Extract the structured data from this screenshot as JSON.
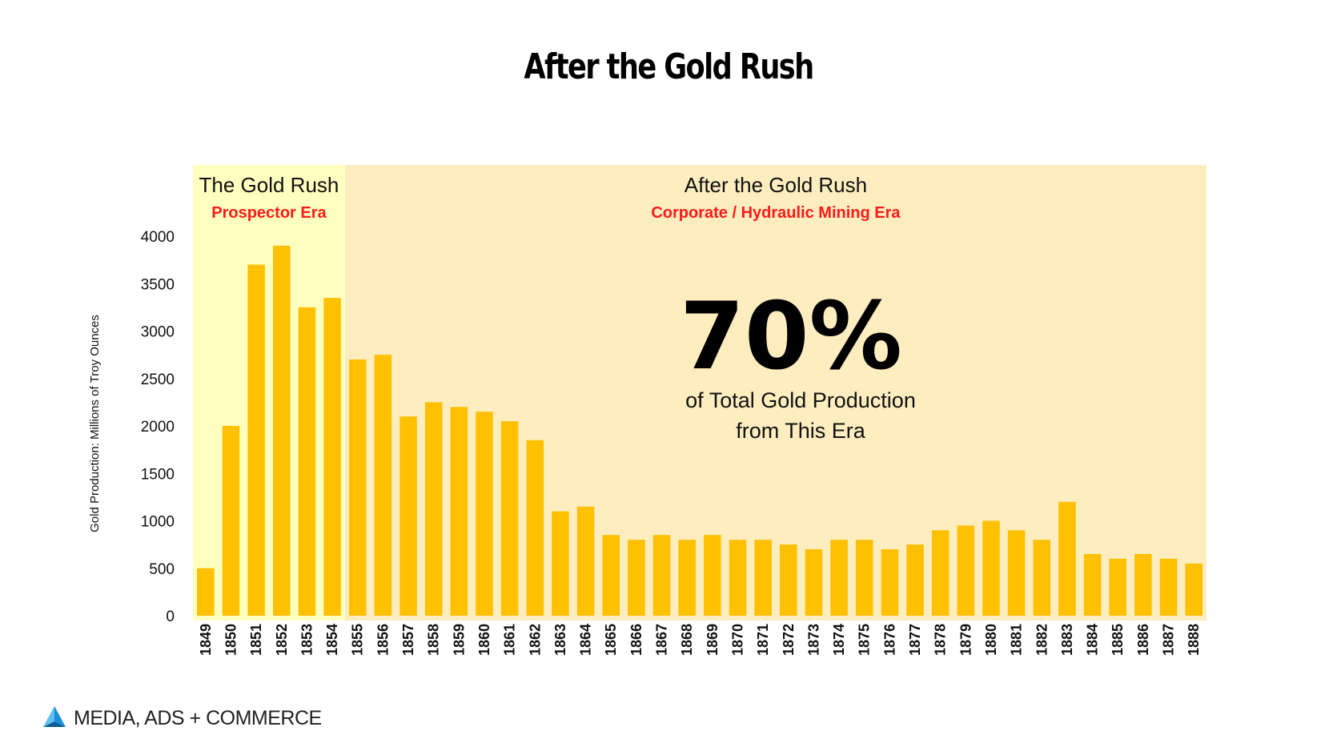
{
  "title": "After the Gold Rush",
  "footer": {
    "brand": "MEDIA, ADS + COMMERCE",
    "logo_icon": "triangle-logo-icon"
  },
  "chart_data": {
    "type": "bar",
    "ylabel": "Gold Production: Millions of Troy Ounces",
    "xlabel": "",
    "ylim": [
      0,
      4000
    ],
    "yticks": [
      0,
      500,
      1000,
      1500,
      2000,
      2500,
      3000,
      3500,
      4000
    ],
    "categories": [
      "1849",
      "1850",
      "1851",
      "1852",
      "1853",
      "1854",
      "1855",
      "1856",
      "1857",
      "1858",
      "1859",
      "1860",
      "1861",
      "1862",
      "1863",
      "1864",
      "1865",
      "1866",
      "1867",
      "1868",
      "1869",
      "1870",
      "1871",
      "1872",
      "1873",
      "1874",
      "1875",
      "1876",
      "1877",
      "1878",
      "1879",
      "1880",
      "1881",
      "1882",
      "1883",
      "1884",
      "1885",
      "1886",
      "1887",
      "1888"
    ],
    "values": [
      500,
      2000,
      3700,
      3900,
      3250,
      3350,
      2700,
      2750,
      2100,
      2250,
      2200,
      2150,
      2050,
      1850,
      1100,
      1150,
      850,
      800,
      850,
      800,
      850,
      800,
      800,
      750,
      700,
      800,
      800,
      700,
      750,
      900,
      950,
      1000,
      900,
      800,
      1200,
      650,
      600,
      650,
      600,
      550
    ],
    "bar_color": "#ffc000",
    "eras": [
      {
        "title": "The Gold Rush",
        "subtitle": "Prospector Era",
        "from": "1849",
        "to": "1854",
        "color": "#ffffc0"
      },
      {
        "title": "After the Gold Rush",
        "subtitle": "Corporate / Hydraulic Mining Era",
        "from": "1855",
        "to": "1888",
        "color": "#fdedbf"
      }
    ],
    "annotation": {
      "value": "70%",
      "caption_line1": "of Total Gold Production",
      "caption_line2": "from This Era"
    },
    "grid": false,
    "legend": "none"
  }
}
